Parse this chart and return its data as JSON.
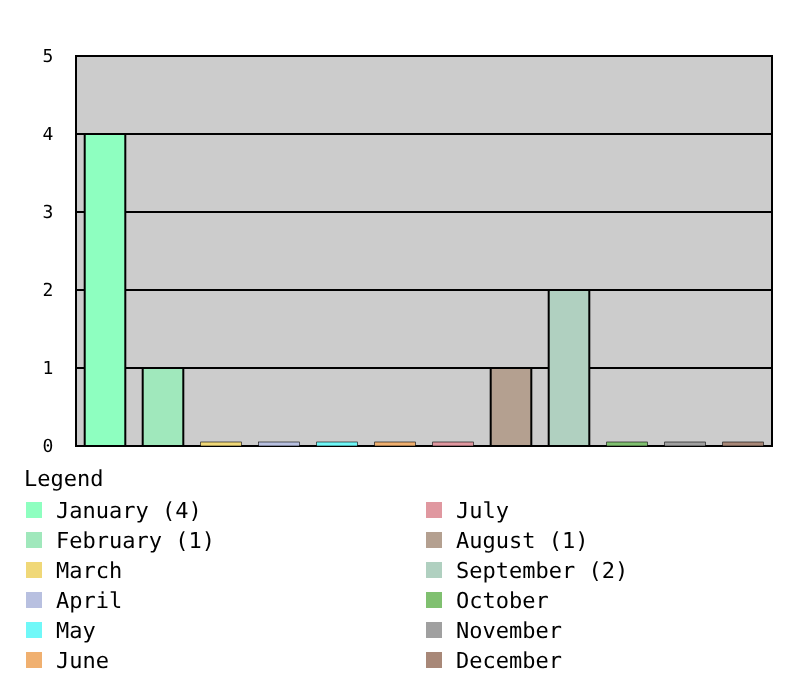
{
  "chart_data": {
    "type": "bar",
    "categories": [
      null,
      null,
      null,
      null,
      null,
      null,
      null,
      null,
      null,
      null,
      null,
      null
    ],
    "ylim": [
      0,
      5
    ],
    "yticks": [
      0,
      1,
      2,
      3,
      4,
      5
    ],
    "grid": "y",
    "legend": "bottom",
    "legend_title": "Legend",
    "series": [
      {
        "name": "January (4)",
        "color": "#8effc0",
        "values": [
          4,
          null,
          null,
          null,
          null,
          null,
          null,
          null,
          null,
          null,
          null,
          null
        ]
      },
      {
        "name": "February (1)",
        "color": "#a0e8bc",
        "values": [
          null,
          1,
          null,
          null,
          null,
          null,
          null,
          null,
          null,
          null,
          null,
          null
        ]
      },
      {
        "name": "March",
        "color": "#f0d878",
        "values": [
          null,
          null,
          0,
          null,
          null,
          null,
          null,
          null,
          null,
          null,
          null,
          null
        ]
      },
      {
        "name": "April",
        "color": "#b8c0e0",
        "values": [
          null,
          null,
          null,
          0,
          null,
          null,
          null,
          null,
          null,
          null,
          null,
          null
        ]
      },
      {
        "name": "May",
        "color": "#70f8f8",
        "values": [
          null,
          null,
          null,
          null,
          0,
          null,
          null,
          null,
          null,
          null,
          null,
          null
        ]
      },
      {
        "name": "June",
        "color": "#f0b070",
        "values": [
          null,
          null,
          null,
          null,
          null,
          0,
          null,
          null,
          null,
          null,
          null,
          null
        ]
      },
      {
        "name": "July",
        "color": "#e098a0",
        "values": [
          null,
          null,
          null,
          null,
          null,
          null,
          0,
          null,
          null,
          null,
          null,
          null
        ]
      },
      {
        "name": "August (1)",
        "color": "#b4a090",
        "values": [
          null,
          null,
          null,
          null,
          null,
          null,
          null,
          1,
          null,
          null,
          null,
          null
        ]
      },
      {
        "name": "September (2)",
        "color": "#b0d0c0",
        "values": [
          null,
          null,
          null,
          null,
          null,
          null,
          null,
          null,
          2,
          null,
          null,
          null
        ]
      },
      {
        "name": "October",
        "color": "#80c070",
        "values": [
          null,
          null,
          null,
          null,
          null,
          null,
          null,
          null,
          null,
          0,
          null,
          null
        ]
      },
      {
        "name": "November",
        "color": "#a0a0a0",
        "values": [
          null,
          null,
          null,
          null,
          null,
          null,
          null,
          null,
          null,
          null,
          0,
          null
        ]
      },
      {
        "name": "December",
        "color": "#a88878",
        "values": [
          null,
          null,
          null,
          null,
          null,
          null,
          null,
          null,
          null,
          null,
          null,
          0
        ]
      }
    ]
  }
}
